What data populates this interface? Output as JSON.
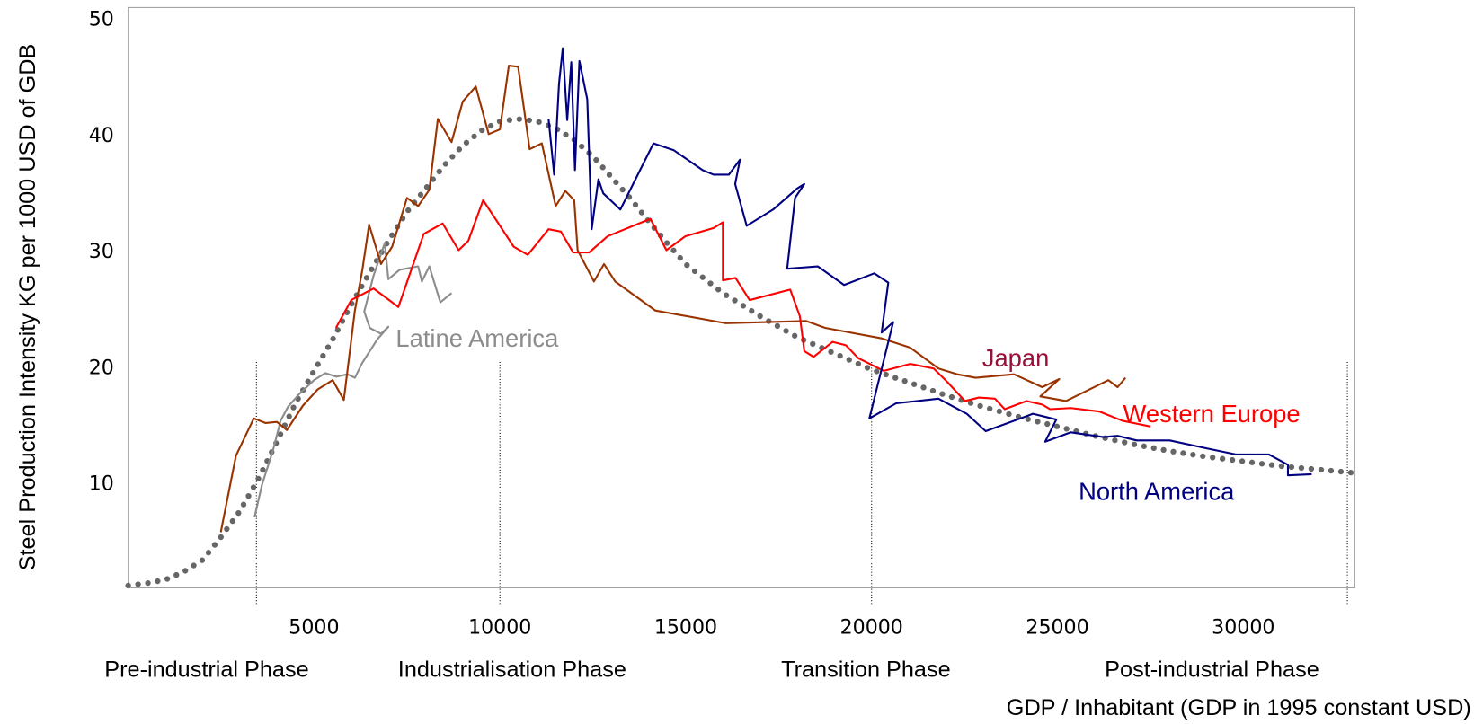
{
  "chart_data": {
    "type": "line",
    "y_label": "Steel Production Intensity KG per 1000 USD of GDB",
    "x_label": "GDP / Inhabitant (GDP in 1995 constant USD)",
    "xlim": [
      0,
      33000
    ],
    "ylim": [
      1.1,
      51.1
    ],
    "xticks": [
      5000,
      10000,
      15000,
      20000,
      25000,
      30000
    ],
    "yticks": [
      10,
      20,
      30,
      40,
      50
    ],
    "grid": false,
    "phases": [
      {
        "label": "Pre-industrial Phase"
      },
      {
        "label": "Industrialisation Phase"
      },
      {
        "label": "Transition Phase"
      },
      {
        "label": "Post-industrial Phase"
      }
    ],
    "phase_boundaries": [
      3450,
      10000,
      20000,
      32800
    ],
    "annotations": [
      {
        "text": "Latine America",
        "color": "#8c8c8c"
      },
      {
        "text": "Japan",
        "color": "#99103a"
      },
      {
        "text": "Western Europe",
        "color": "#ff0000"
      },
      {
        "text": "North America",
        "color": "#000080"
      }
    ],
    "series": [
      {
        "color": "#666666",
        "dotted": true,
        "x": [
          0,
          500,
          1000,
          1500,
          2000,
          2500,
          3000,
          3500,
          4000,
          4500,
          5000,
          5500,
          6000,
          6500,
          7000,
          7500,
          8000,
          8500,
          9000,
          9500,
          10000,
          10500,
          11000,
          11500,
          12000,
          12500,
          13000,
          13500,
          14000,
          14500,
          15000,
          16000,
          17000,
          18000,
          19000,
          20000,
          21000,
          22000,
          23000,
          24000,
          25000,
          26000,
          27000,
          28000,
          29000,
          30000,
          31000,
          32000,
          33000
        ],
        "y": [
          1.3,
          1.5,
          1.8,
          2.5,
          3.5,
          5.5,
          7.7,
          10.5,
          13.7,
          17,
          19.8,
          22.5,
          25.5,
          28.3,
          31,
          33.5,
          35.5,
          37.5,
          39.2,
          40.5,
          41.3,
          41.5,
          41.3,
          40.7,
          39.7,
          38.3,
          36.5,
          34.7,
          32.7,
          30.8,
          29,
          26.5,
          24.5,
          22.7,
          21.3,
          19.9,
          18.8,
          17.7,
          16.7,
          15.8,
          15,
          14.2,
          13.5,
          12.9,
          12.4,
          12,
          11.6,
          11.3,
          11
        ]
      },
      {
        "color": "#8c8c8c",
        "x": [
          3400,
          3600,
          3900,
          4100,
          4300,
          4600,
          5000,
          5300,
          5600,
          5900,
          6100,
          6300,
          6700,
          7000,
          6800,
          6500,
          6350,
          6600,
          6900,
          7000,
          7300,
          7800,
          7900,
          8100,
          8400,
          8700
        ],
        "y": [
          7.2,
          10,
          13,
          15.5,
          16.7,
          17.8,
          19,
          19.6,
          19.3,
          19.5,
          19.2,
          20.5,
          22.5,
          23.6,
          23,
          23.5,
          24.9,
          28,
          30.8,
          27.7,
          28.5,
          28.8,
          27.5,
          28.8,
          25.7,
          26.5
        ]
      },
      {
        "color": "#993300",
        "x": [
          2490,
          2900,
          3380,
          3700,
          4000,
          4270,
          4700,
          5100,
          5500,
          5800,
          6100,
          6300,
          6480,
          6800,
          7100,
          7500,
          7800,
          8100,
          8330,
          8700,
          9000,
          9350,
          9700,
          10000,
          10240,
          10490,
          10800,
          11130,
          11500,
          11760,
          12000,
          12090,
          12530,
          12800,
          13100,
          14180,
          16080,
          18240,
          18750,
          20270,
          21040,
          21800,
          22300,
          22800,
          23830,
          24590,
          25050,
          24540,
          25230,
          26370,
          26620,
          26830
        ],
        "y": [
          5.9,
          12.5,
          15.7,
          15.3,
          15.4,
          14.7,
          16.8,
          18.2,
          19,
          17.3,
          25,
          28.5,
          32.4,
          29,
          30.5,
          34.7,
          34,
          35.4,
          41.5,
          39.5,
          43,
          44.3,
          40.2,
          40.6,
          46.1,
          46,
          38.9,
          39.4,
          34,
          35.3,
          34.5,
          30.2,
          27.5,
          29,
          27.5,
          25,
          23.9,
          24.1,
          23.5,
          22.6,
          21.8,
          20,
          19.5,
          19.2,
          19.5,
          18.4,
          19.1,
          17.6,
          17.2,
          19,
          18.4,
          19.2
        ]
      },
      {
        "color": "#ff0000",
        "x": [
          5590,
          6000,
          6600,
          7270,
          7950,
          8460,
          8890,
          9150,
          9550,
          10370,
          10750,
          11310,
          11640,
          11970,
          12400,
          12900,
          14050,
          14480,
          14990,
          15750,
          16000,
          16000,
          16340,
          16720,
          17810,
          18070,
          18190,
          18440,
          18950,
          19310,
          19640,
          20330,
          21040,
          21670,
          22050,
          22510,
          22890,
          23320,
          23580,
          24160,
          24590,
          24800,
          25360,
          26120,
          26750,
          27510
        ],
        "y": [
          23.5,
          25.9,
          26.9,
          25.3,
          31.6,
          32.5,
          30.2,
          31,
          34.5,
          30.5,
          29.8,
          32,
          31.8,
          30,
          30,
          31.4,
          32.9,
          30.2,
          31.4,
          32.1,
          32.6,
          27.6,
          27.8,
          25.9,
          26.8,
          24.5,
          21.5,
          21,
          22.3,
          22,
          20.9,
          19.8,
          20.4,
          20,
          18.8,
          17.2,
          17.5,
          17.4,
          16.5,
          17.2,
          16.9,
          16.5,
          16.6,
          16.3,
          15.5,
          15
        ]
      },
      {
        "color": "#000080",
        "x": [
          11310,
          11460,
          11590,
          11690,
          11810,
          11920,
          12020,
          12140,
          12350,
          12470,
          12650,
          12780,
          13240,
          14130,
          14680,
          15450,
          15750,
          16160,
          16460,
          16330,
          16640,
          17350,
          17990,
          18190,
          17940,
          17730,
          18550,
          19260,
          20070,
          20450,
          20270,
          20580,
          19940,
          20660,
          21800,
          22560,
          23070,
          24340,
          24970,
          24670,
          25360,
          26240,
          26620,
          27130,
          28020,
          29040,
          29800,
          30690,
          31200,
          31200,
          31840
        ],
        "y": [
          41.5,
          36.7,
          44.5,
          47.6,
          41.4,
          46.4,
          37.1,
          46.5,
          43.2,
          32,
          36.3,
          35.1,
          33.7,
          39.4,
          38.8,
          37.1,
          36.7,
          36.7,
          38,
          35.9,
          32.3,
          33.7,
          35.5,
          35.9,
          34.7,
          28.6,
          28.8,
          27.2,
          28.2,
          27.4,
          23.1,
          24,
          15.7,
          17,
          17.4,
          16.1,
          14.6,
          16.1,
          15.6,
          13.7,
          14.5,
          14.1,
          14.2,
          13.8,
          13.8,
          13.1,
          12.6,
          12.6,
          11.7,
          10.8,
          10.9
        ]
      }
    ]
  }
}
